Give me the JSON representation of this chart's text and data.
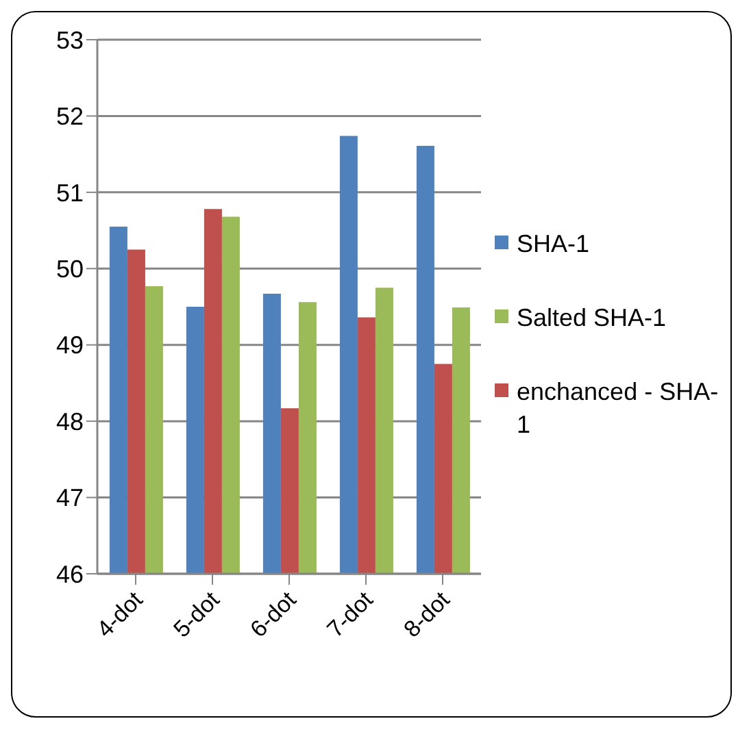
{
  "chart_data": {
    "type": "bar",
    "categories": [
      "4-dot",
      "5-dot",
      "6-dot",
      "7-dot",
      "8-dot"
    ],
    "series": [
      {
        "name": "SHA-1",
        "color": "#4f81bd",
        "values": [
          50.55,
          49.5,
          49.67,
          51.74,
          51.61
        ]
      },
      {
        "name": "enchanced - SHA-1",
        "color": "#c0504d",
        "values": [
          50.25,
          50.78,
          48.17,
          49.36,
          48.75
        ]
      },
      {
        "name": "Salted SHA-1",
        "color": "#9bbb59",
        "values": [
          49.77,
          50.68,
          49.56,
          49.75,
          49.49
        ]
      }
    ],
    "ylim": [
      46,
      53
    ],
    "yticks": [
      46,
      47,
      48,
      49,
      50,
      51,
      52,
      53
    ],
    "grid": "y",
    "legend": "right"
  }
}
